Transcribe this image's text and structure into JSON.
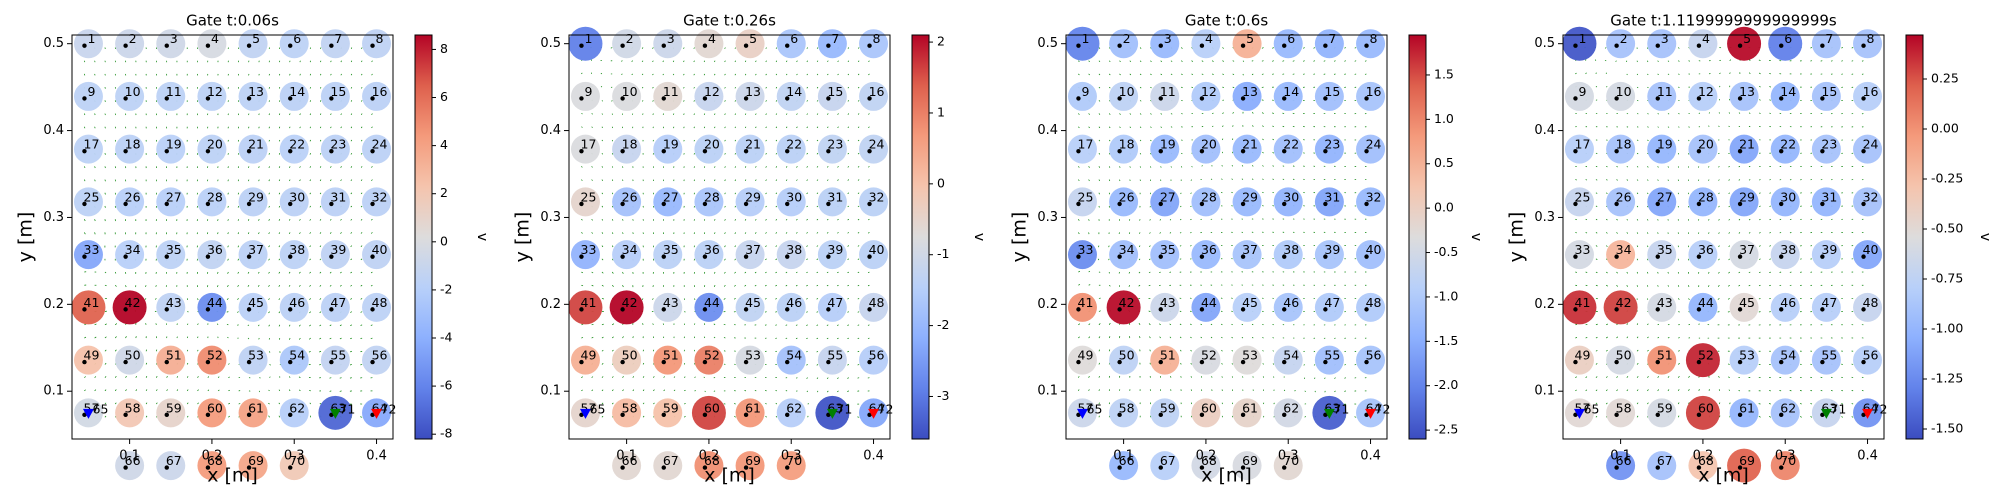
{
  "chart_data": [
    {
      "type": "scatter",
      "title": "Gate t:0.06s",
      "xlabel": "x [m]",
      "ylabel": "y [m]",
      "xlim": [
        0.03,
        0.42
      ],
      "ylim": [
        0.045,
        0.51
      ],
      "xticks": [
        "0.1",
        "0.2",
        "0.3",
        "0.4"
      ],
      "yticks": [
        "0.1",
        "0.2",
        "0.3",
        "0.4",
        "0.5"
      ],
      "colorbar": {
        "label": "v",
        "vmin": -8.2,
        "vmax": 8.6,
        "ticks": [
          "-8",
          "-6",
          "-4",
          "-2",
          "0",
          "2",
          "4",
          "6",
          "8"
        ],
        "tick_values": [
          -8,
          -6,
          -4,
          -2,
          0,
          2,
          4,
          6,
          8
        ]
      },
      "node_values": [
        -1.0,
        -0.8,
        -0.6,
        -0.2,
        -1.4,
        -1.6,
        -1.4,
        -1.5,
        -1.6,
        -1.6,
        -1.6,
        -1.6,
        -1.6,
        -1.7,
        -1.7,
        -1.7,
        -1.6,
        -1.7,
        -1.8,
        -1.6,
        -1.7,
        -1.8,
        -1.7,
        -1.7,
        -1.6,
        -1.9,
        -1.9,
        -1.8,
        -1.7,
        -1.7,
        -1.7,
        -1.7,
        -4.4,
        -1.9,
        -1.6,
        -1.4,
        -1.7,
        -1.6,
        -1.5,
        -1.5,
        6.4,
        8.6,
        -1.5,
        -5.6,
        -1.8,
        -1.7,
        -1.7,
        -1.6,
        2.4,
        -0.6,
        3.4,
        4.9,
        -1.5,
        -2.5,
        -1.3,
        -1.4,
        -0.4,
        2.0,
        1.0,
        4.3,
        4.0,
        -2.0,
        -7.2,
        -4.3,
        null,
        -0.6,
        -0.8,
        4.3,
        3.8,
        1.9,
        null,
        null
      ],
      "markers": [
        {
          "label": "65",
          "x": 0.05,
          "y": 0.075,
          "color": "#0000ff"
        },
        {
          "label": "71",
          "x": 0.35,
          "y": 0.075,
          "color": "#008000"
        },
        {
          "label": "72",
          "x": 0.4,
          "y": 0.075,
          "color": "#ff0000"
        }
      ],
      "hubs": [
        42,
        44,
        33,
        63,
        54,
        61
      ]
    },
    {
      "type": "scatter",
      "title": "Gate t:0.26s",
      "xlabel": "x [m]",
      "ylabel": "y [m]",
      "xlim": [
        0.03,
        0.42
      ],
      "ylim": [
        0.045,
        0.51
      ],
      "xticks": [
        "0.1",
        "0.2",
        "0.3",
        "0.4"
      ],
      "yticks": [
        "0.1",
        "0.2",
        "0.3",
        "0.4",
        "0.5"
      ],
      "colorbar": {
        "label": "v",
        "vmin": -3.6,
        "vmax": 2.1,
        "ticks": [
          "-3",
          "-2",
          "-1",
          "0",
          "1",
          "2"
        ],
        "tick_values": [
          -3,
          -2,
          -1,
          0,
          1,
          2
        ]
      },
      "node_values": [
        -2.9,
        -1.0,
        -1.1,
        -0.6,
        -0.4,
        -1.7,
        -2.0,
        -1.7,
        -0.8,
        -0.8,
        -0.6,
        -1.2,
        -1.1,
        -1.3,
        -1.2,
        -1.3,
        -0.8,
        -1.2,
        -1.5,
        -1.4,
        -1.4,
        -1.4,
        -1.3,
        -1.3,
        -0.5,
        -1.8,
        -2.0,
        -1.7,
        -1.5,
        -1.5,
        -1.4,
        -1.4,
        -2.1,
        -1.5,
        -1.4,
        -1.4,
        -1.2,
        -1.2,
        -1.4,
        -1.4,
        1.6,
        2.1,
        -1.1,
        -2.7,
        -1.3,
        -1.4,
        -1.5,
        -1.2,
        0.3,
        -0.3,
        0.7,
        1.0,
        -0.9,
        -1.8,
        -1.2,
        -1.5,
        -0.5,
        0.1,
        0.0,
        1.6,
        0.7,
        -1.5,
        -3.5,
        -2.3,
        null,
        -0.6,
        -0.6,
        0.8,
        0.7,
        0.6,
        null,
        null
      ],
      "markers": [
        {
          "label": "65",
          "x": 0.05,
          "y": 0.075,
          "color": "#0000ff"
        },
        {
          "label": "71",
          "x": 0.35,
          "y": 0.075,
          "color": "#008000"
        },
        {
          "label": "72",
          "x": 0.4,
          "y": 0.075,
          "color": "#ff0000"
        }
      ],
      "hubs": [
        42,
        44,
        63,
        60,
        1
      ]
    },
    {
      "type": "scatter",
      "title": "Gate t:0.6s",
      "xlabel": "x [m]",
      "ylabel": "y [m]",
      "xlim": [
        0.03,
        0.42
      ],
      "ylim": [
        0.045,
        0.51
      ],
      "xticks": [
        "0.1",
        "0.2",
        "0.3",
        "0.4"
      ],
      "yticks": [
        "0.1",
        "0.2",
        "0.3",
        "0.4",
        "0.5"
      ],
      "colorbar": {
        "label": "v",
        "vmin": -2.6,
        "vmax": 1.95,
        "ticks": [
          "-2.5",
          "-2.0",
          "-1.5",
          "-1.0",
          "-0.5",
          "0.0",
          "0.5",
          "1.0",
          "1.5"
        ],
        "tick_values": [
          -2.5,
          -2.0,
          -1.5,
          -1.0,
          -0.5,
          0.0,
          0.5,
          1.0,
          1.5
        ]
      },
      "node_values": [
        -2.0,
        -1.2,
        -1.3,
        -0.9,
        0.5,
        -1.3,
        -1.4,
        -1.3,
        -1.0,
        -0.8,
        -0.6,
        -1.0,
        -1.5,
        -1.3,
        -1.2,
        -1.1,
        -0.9,
        -1.0,
        -1.3,
        -1.2,
        -1.3,
        -1.2,
        -1.4,
        -1.2,
        -0.7,
        -1.3,
        -1.6,
        -1.2,
        -1.3,
        -1.4,
        -1.6,
        -1.3,
        -1.9,
        -1.2,
        -1.2,
        -1.3,
        -1.1,
        -1.0,
        -1.1,
        -1.2,
        0.9,
        1.9,
        -0.6,
        -1.6,
        -0.9,
        -1.1,
        -1.0,
        -1.0,
        -0.3,
        -0.8,
        0.5,
        -0.4,
        -0.3,
        -0.7,
        -1.2,
        -1.1,
        -0.6,
        -0.8,
        -0.8,
        0.0,
        -0.1,
        -0.5,
        -2.4,
        -1.1,
        null,
        -1.3,
        -0.9,
        -0.5,
        -0.4,
        -0.2,
        null,
        null
      ],
      "markers": [
        {
          "label": "65",
          "x": 0.05,
          "y": 0.075,
          "color": "#0000ff"
        },
        {
          "label": "71",
          "x": 0.35,
          "y": 0.075,
          "color": "#008000"
        },
        {
          "label": "72",
          "x": 0.4,
          "y": 0.075,
          "color": "#ff0000"
        }
      ],
      "hubs": [
        42,
        5,
        63,
        33,
        13
      ]
    },
    {
      "type": "scatter",
      "title": "Gate t:1.1199999999999999s",
      "xlabel": "x [m]",
      "ylabel": "y [m]",
      "xlim": [
        0.03,
        0.42
      ],
      "ylim": [
        0.045,
        0.51
      ],
      "xticks": [
        "0.1",
        "0.2",
        "0.3",
        "0.4"
      ],
      "yticks": [
        "0.1",
        "0.2",
        "0.3",
        "0.4",
        "0.5"
      ],
      "colorbar": {
        "label": "v",
        "vmin": -1.55,
        "vmax": 0.47,
        "ticks": [
          "-1.50",
          "-1.25",
          "-1.00",
          "-0.75",
          "-0.50",
          "-0.25",
          "0.00",
          "0.25"
        ],
        "tick_values": [
          -1.5,
          -1.25,
          -1.0,
          -0.75,
          -0.5,
          -0.25,
          0.0,
          0.25
        ]
      },
      "node_values": [
        -1.5,
        -0.9,
        -0.9,
        -0.7,
        0.45,
        -1.3,
        -0.9,
        -0.9,
        -0.6,
        -0.6,
        -0.9,
        -0.8,
        -0.9,
        -1.0,
        -0.9,
        -0.8,
        -0.8,
        -0.9,
        -1.0,
        -0.9,
        -1.1,
        -1.0,
        -0.9,
        -0.9,
        -0.7,
        -0.9,
        -1.1,
        -1.0,
        -1.1,
        -1.0,
        -1.0,
        -0.9,
        -0.6,
        -0.2,
        -0.7,
        -0.8,
        -0.6,
        -0.7,
        -0.8,
        -1.1,
        0.35,
        0.3,
        -0.6,
        -1.0,
        -0.5,
        -0.8,
        -0.8,
        -0.7,
        -0.4,
        -0.6,
        0.0,
        0.38,
        -0.8,
        -0.9,
        -0.9,
        -0.8,
        -0.5,
        -0.5,
        -0.6,
        0.3,
        -1.0,
        -0.9,
        -0.7,
        -1.2,
        null,
        -1.2,
        -0.9,
        -0.3,
        0.2,
        0.05,
        null,
        null
      ],
      "markers": [
        {
          "label": "65",
          "x": 0.05,
          "y": 0.075,
          "color": "#0000ff"
        },
        {
          "label": "71",
          "x": 0.35,
          "y": 0.075,
          "color": "#008000"
        },
        {
          "label": "72",
          "x": 0.4,
          "y": 0.075,
          "color": "#ff0000"
        }
      ],
      "hubs": [
        5,
        52,
        42,
        44,
        61,
        1
      ]
    }
  ],
  "colors": {
    "arrow": "#008000",
    "node_dot": "#000000"
  }
}
